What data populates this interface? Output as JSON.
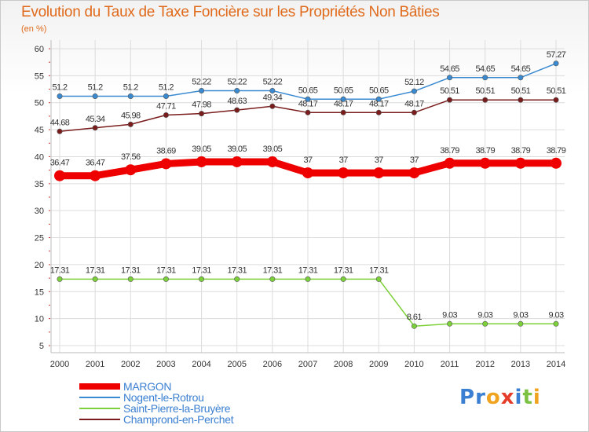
{
  "header": {
    "title": "Evolution du Taux de Taxe Foncière sur les Propriétés Non Bâties",
    "unit": "(en %)"
  },
  "logo": {
    "text": "Proxiti",
    "letters": [
      {
        "ch": "P",
        "color": "#3a7fd1"
      },
      {
        "ch": "r",
        "color": "#3a7fd1"
      },
      {
        "ch": "o",
        "color": "#f0a31e"
      },
      {
        "ch": "x",
        "color": "#e63c2a"
      },
      {
        "ch": "i",
        "color": "#3a7fd1"
      },
      {
        "ch": "t",
        "color": "#7cc242"
      },
      {
        "ch": "i",
        "color": "#f0a31e"
      }
    ]
  },
  "chart_data": {
    "type": "line",
    "title": "Evolution du Taux de Taxe Foncière sur les Propriétés Non Bâties",
    "ylabel": "(en %)",
    "xlabel": "",
    "x": [
      "2000",
      "2001",
      "2002",
      "2003",
      "2004",
      "2005",
      "2006",
      "2007",
      "2008",
      "2009",
      "2010",
      "2011",
      "2012",
      "2013",
      "2014"
    ],
    "ylim": [
      5,
      60
    ],
    "yticks": [
      5,
      10,
      15,
      20,
      25,
      30,
      35,
      40,
      45,
      50,
      55,
      60
    ],
    "grid": true,
    "legend_position": "bottom-left",
    "series": [
      {
        "name": "MARGON",
        "color": "#ee0000",
        "emphasis": true,
        "values": [
          36.47,
          36.47,
          37.56,
          38.69,
          39.05,
          39.05,
          39.05,
          37,
          37,
          37,
          37,
          38.79,
          38.79,
          38.79,
          38.79
        ],
        "labels": [
          "36.47",
          "36.47",
          "37.56",
          "38.69",
          "39.05",
          "39.05",
          "39.05",
          "37",
          "37",
          "37",
          "37",
          "38.79",
          "38.79",
          "38.79",
          "38.79"
        ]
      },
      {
        "name": "Nogent-le-Rotrou",
        "color": "#3a8ad1",
        "emphasis": false,
        "values": [
          51.2,
          51.2,
          51.2,
          51.2,
          52.22,
          52.22,
          52.22,
          50.65,
          50.65,
          50.65,
          52.12,
          54.65,
          54.65,
          54.65,
          57.27
        ],
        "labels": [
          "51.2",
          "51.2",
          "51.2",
          "51.2",
          "52.22",
          "52.22",
          "52.22",
          "50.65",
          "50.65",
          "50.65",
          "52.12",
          "54.65",
          "54.65",
          "54.65",
          "57.27"
        ]
      },
      {
        "name": "Saint-Pierre-la-Bruyère",
        "color": "#7cd13a",
        "emphasis": false,
        "values": [
          17.31,
          17.31,
          17.31,
          17.31,
          17.31,
          17.31,
          17.31,
          17.31,
          17.31,
          17.31,
          8.61,
          9.03,
          9.03,
          9.03,
          9.03
        ],
        "labels": [
          "17.31",
          "17.31",
          "17.31",
          "17.31",
          "17.31",
          "17.31",
          "17.31",
          "17.31",
          "17.31",
          "17.31",
          "8.61",
          "9.03",
          "9.03",
          "9.03",
          "9.03"
        ]
      },
      {
        "name": "Champrond-en-Perchet",
        "color": "#7a1c1c",
        "emphasis": false,
        "values": [
          44.68,
          45.34,
          45.98,
          47.71,
          47.98,
          48.63,
          49.34,
          48.17,
          48.17,
          48.17,
          48.17,
          50.51,
          50.51,
          50.51,
          50.51
        ],
        "labels": [
          "44.68",
          "45.34",
          "45.98",
          "47.71",
          "47.98",
          "48.63",
          "49.34",
          "48.17",
          "48.17",
          "48.17",
          "48.17",
          "50.51",
          "50.51",
          "50.51",
          "50.51"
        ]
      }
    ]
  }
}
